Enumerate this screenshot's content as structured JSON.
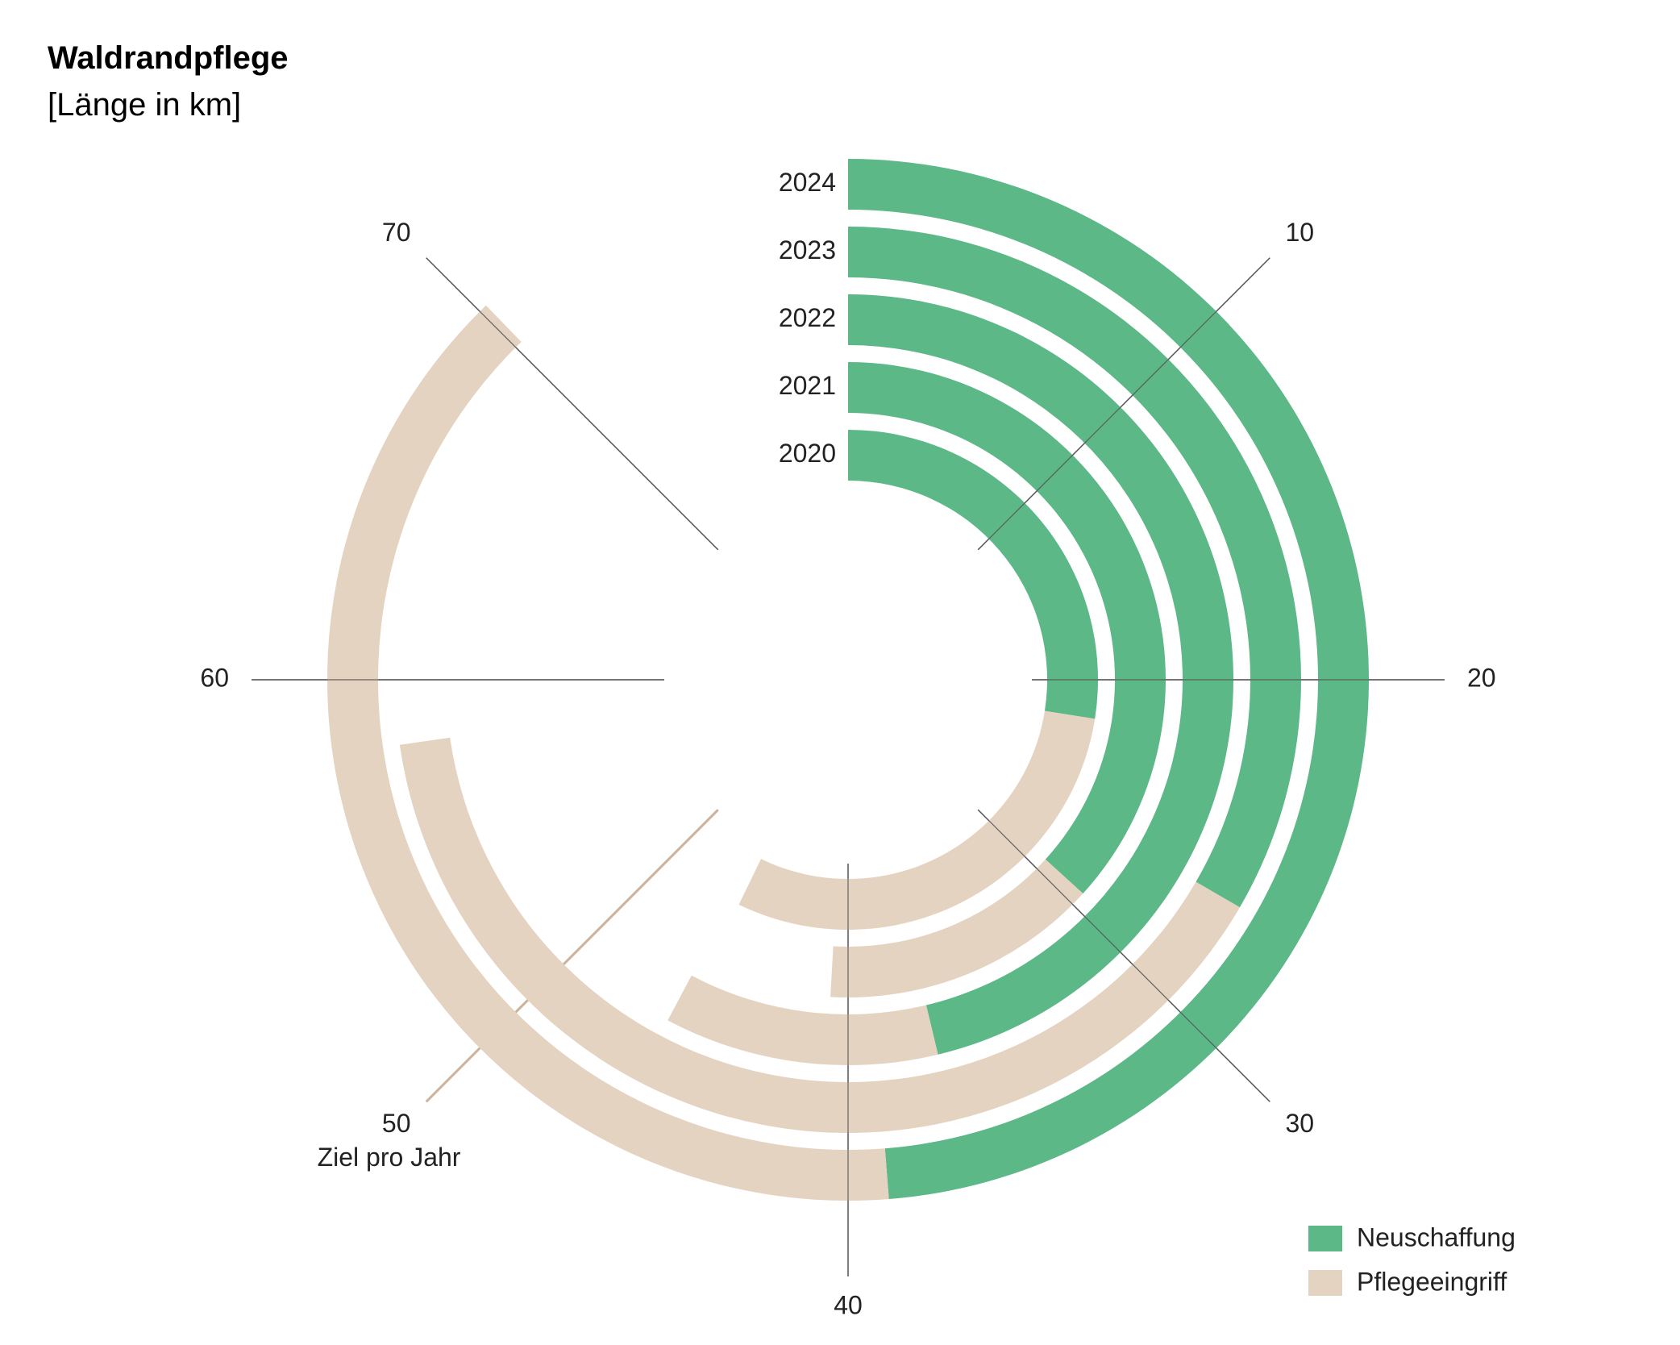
{
  "title": "Waldrandpflege",
  "subtitle": "[Länge in km]",
  "colors": {
    "neuschaffung": "#5cb886",
    "pflegeeingriff": "#e5d3c2",
    "axis": "#555555",
    "target": "#cbb29c"
  },
  "chart_data": {
    "type": "radial-stacked-bar",
    "title": "Waldrandpflege",
    "subtitle": "[Länge in km]",
    "categories": [
      "2020",
      "2021",
      "2022",
      "2023",
      "2024"
    ],
    "series": [
      {
        "name": "Neuschaffung",
        "values": [
          22.0,
          29.4,
          37.0,
          26.7,
          39.0
        ]
      },
      {
        "name": "Pflegeeingriff",
        "values": [
          24.4,
          11.8,
          9.6,
          31.8,
          31.5
        ]
      }
    ],
    "scale_max": 80,
    "axis_ticks": [
      10,
      20,
      30,
      40,
      50,
      60,
      70
    ],
    "target": {
      "value": 50,
      "label": "Ziel pro Jahr"
    },
    "legend": {
      "position": "bottom-right",
      "items": [
        "Neuschaffung",
        "Pflegeeingriff"
      ]
    }
  }
}
